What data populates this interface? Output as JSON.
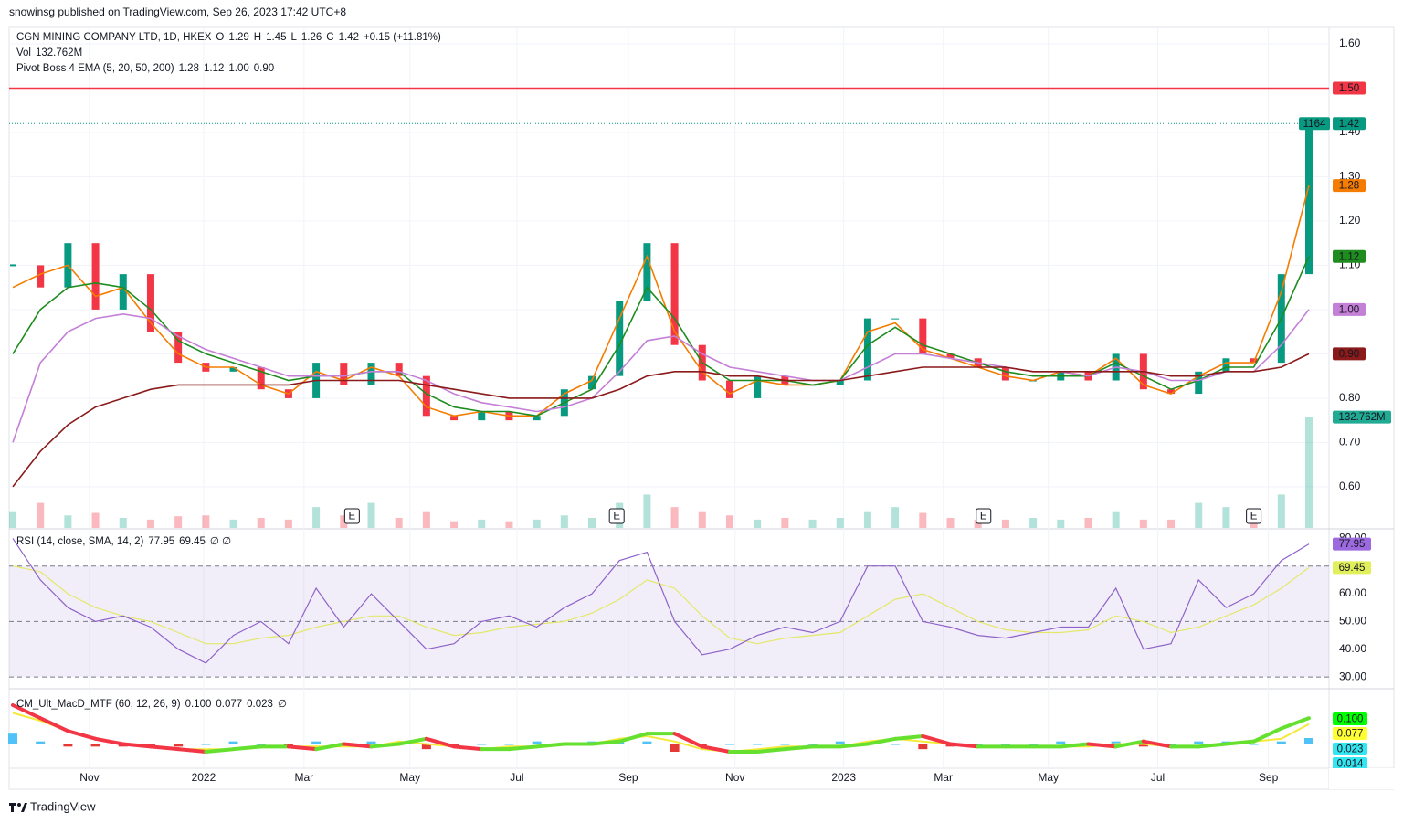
{
  "header": {
    "text": "snowinsg published on TradingView.com, Sep 26, 2023 17:42 UTC+8"
  },
  "footer": {
    "brand": "TradingView"
  },
  "chart_data": [
    {
      "type": "candlestick",
      "title": "CGN MINING COMPANY LTD, 1D, HKEX",
      "ohlc": [
        [
          "O",
          "1.29"
        ],
        [
          "H",
          "1.45"
        ],
        [
          "L",
          "1.26"
        ],
        [
          "C",
          "1.42"
        ]
      ],
      "change": "+0.15 (+11.81%)",
      "countdown": "1164",
      "up_color": "#089981",
      "down_color": "#f23645",
      "xlim": [
        0,
        47
      ],
      "xticks": [
        {
          "value": 2.78,
          "label": "Nov"
        },
        {
          "value": 6.92,
          "label": "2022"
        },
        {
          "value": 10.56,
          "label": "Mar"
        },
        {
          "value": 14.4,
          "label": "May"
        },
        {
          "value": 18.28,
          "label": "Jul"
        },
        {
          "value": 22.32,
          "label": "Sep"
        },
        {
          "value": 26.19,
          "label": "Nov"
        },
        {
          "value": 30.13,
          "label": "2023"
        },
        {
          "value": 33.74,
          "label": "Mar"
        },
        {
          "value": 37.55,
          "label": "May"
        },
        {
          "value": 41.52,
          "label": "Jul"
        },
        {
          "value": 45.53,
          "label": "Sep"
        }
      ],
      "ylim": [
        0.507,
        1.637
      ],
      "yticks": [
        {
          "value": 0.6,
          "label": "0.60"
        },
        {
          "value": 0.7,
          "label": "0.70"
        },
        {
          "value": 0.8,
          "label": "0.80"
        },
        {
          "value": 0.9,
          "label": "0.90"
        },
        {
          "value": 1.0,
          "label": "1.00"
        },
        {
          "value": 1.1,
          "label": "1.10"
        },
        {
          "value": 1.2,
          "label": "1.20"
        },
        {
          "value": 1.3,
          "label": "1.30"
        },
        {
          "value": 1.4,
          "label": "1.40"
        },
        {
          "value": 1.5,
          "label": "1.50"
        },
        {
          "value": 1.6,
          "label": "1.60"
        }
      ],
      "grid": true,
      "close": [
        1.1,
        1.05,
        1.15,
        1.0,
        1.08,
        0.95,
        0.88,
        0.86,
        0.87,
        0.82,
        0.8,
        0.88,
        0.83,
        0.88,
        0.85,
        0.76,
        0.75,
        0.77,
        0.75,
        0.76,
        0.82,
        0.85,
        1.02,
        1.15,
        0.92,
        0.84,
        0.8,
        0.85,
        0.83,
        0.83,
        0.84,
        0.98,
        0.98,
        0.9,
        0.89,
        0.87,
        0.84,
        0.84,
        0.86,
        0.84,
        0.9,
        0.82,
        0.81,
        0.86,
        0.89,
        0.88,
        1.08,
        1.42
      ],
      "hline": {
        "value": 1.5,
        "label": "1.50",
        "color": "#f23645"
      },
      "indicator": "Pivot Boss 4 EMA (5, 20, 50, 200)",
      "series": [
        {
          "color": "#f57c00",
          "label": "1.28",
          "values": [
            1.05,
            1.08,
            1.1,
            1.03,
            1.05,
            0.97,
            0.9,
            0.87,
            0.87,
            0.83,
            0.81,
            0.86,
            0.84,
            0.87,
            0.85,
            0.78,
            0.76,
            0.77,
            0.76,
            0.76,
            0.81,
            0.84,
            0.98,
            1.12,
            0.95,
            0.86,
            0.81,
            0.84,
            0.83,
            0.83,
            0.84,
            0.95,
            0.97,
            0.91,
            0.89,
            0.87,
            0.85,
            0.84,
            0.86,
            0.85,
            0.89,
            0.83,
            0.81,
            0.85,
            0.88,
            0.88,
            1.04,
            1.28
          ]
        },
        {
          "color": "#1e8c1e",
          "label": "1.12",
          "values": [
            0.9,
            1.0,
            1.05,
            1.06,
            1.05,
            1.0,
            0.93,
            0.9,
            0.88,
            0.86,
            0.84,
            0.85,
            0.85,
            0.86,
            0.86,
            0.81,
            0.78,
            0.77,
            0.77,
            0.76,
            0.79,
            0.82,
            0.92,
            1.05,
            0.98,
            0.88,
            0.84,
            0.84,
            0.84,
            0.83,
            0.84,
            0.92,
            0.96,
            0.92,
            0.9,
            0.88,
            0.86,
            0.85,
            0.85,
            0.85,
            0.88,
            0.85,
            0.82,
            0.84,
            0.87,
            0.87,
            0.98,
            1.12
          ]
        },
        {
          "color": "#c47fd6",
          "label": "1.00",
          "values": [
            0.7,
            0.88,
            0.95,
            0.98,
            0.99,
            0.98,
            0.94,
            0.91,
            0.89,
            0.87,
            0.85,
            0.85,
            0.85,
            0.86,
            0.86,
            0.84,
            0.81,
            0.79,
            0.78,
            0.77,
            0.78,
            0.8,
            0.86,
            0.93,
            0.94,
            0.9,
            0.87,
            0.86,
            0.85,
            0.84,
            0.84,
            0.87,
            0.9,
            0.9,
            0.89,
            0.88,
            0.87,
            0.86,
            0.86,
            0.85,
            0.87,
            0.86,
            0.84,
            0.84,
            0.86,
            0.86,
            0.92,
            1.0
          ]
        },
        {
          "color": "#8b1a1a",
          "label": "0.90",
          "values": [
            0.6,
            0.68,
            0.74,
            0.78,
            0.8,
            0.82,
            0.83,
            0.83,
            0.83,
            0.83,
            0.83,
            0.84,
            0.84,
            0.84,
            0.84,
            0.83,
            0.82,
            0.81,
            0.8,
            0.8,
            0.8,
            0.8,
            0.82,
            0.85,
            0.86,
            0.86,
            0.85,
            0.85,
            0.84,
            0.84,
            0.84,
            0.85,
            0.86,
            0.87,
            0.87,
            0.87,
            0.87,
            0.86,
            0.86,
            0.86,
            0.86,
            0.86,
            0.85,
            0.85,
            0.86,
            0.86,
            0.87,
            0.9
          ]
        }
      ],
      "volume": {
        "name": "Vol",
        "label": "132.762M",
        "ylim": [
          0,
          140
        ],
        "color": "#22ab94",
        "values": [
          20,
          30,
          15,
          18,
          12,
          10,
          14,
          15,
          10,
          12,
          10,
          25,
          15,
          30,
          12,
          20,
          8,
          10,
          8,
          10,
          15,
          12,
          30,
          40,
          25,
          20,
          15,
          10,
          12,
          10,
          12,
          20,
          25,
          18,
          12,
          10,
          10,
          12,
          10,
          12,
          20,
          10,
          10,
          30,
          25,
          15,
          40,
          132.762
        ]
      },
      "events": [
        {
          "x": 12.3,
          "label": "E"
        },
        {
          "x": 21.9,
          "label": "E"
        },
        {
          "x": 35.2,
          "label": "E"
        },
        {
          "x": 45.0,
          "label": "E"
        }
      ]
    },
    {
      "type": "line",
      "title": "RSI (14, close, SMA, 14, 2)",
      "flags": "∅ ∅",
      "ylim": [
        26.4,
        83.1
      ],
      "yticks": [
        {
          "value": 30,
          "label": "30.00"
        },
        {
          "value": 40,
          "label": "40.00"
        },
        {
          "value": 50,
          "label": "50.00"
        },
        {
          "value": 60,
          "label": "60.00"
        },
        {
          "value": 80,
          "label": "80.00"
        }
      ],
      "levels": [
        70,
        50,
        30
      ],
      "band_color": "#7e57c2",
      "series": [
        {
          "color": "#8e63c9",
          "label": "77.95",
          "badge_color": "#9c6ade",
          "values": [
            80,
            65,
            55,
            50,
            52,
            48,
            40,
            35,
            45,
            50,
            42,
            62,
            48,
            60,
            50,
            40,
            42,
            50,
            52,
            48,
            55,
            60,
            72,
            75,
            50,
            38,
            40,
            45,
            48,
            46,
            50,
            70,
            70,
            50,
            48,
            45,
            44,
            46,
            48,
            48,
            62,
            40,
            42,
            65,
            55,
            60,
            72,
            77.95
          ]
        },
        {
          "color": "#e3e86a",
          "label": "69.45",
          "badge_color": "#e1ef5a",
          "values": [
            70,
            68,
            60,
            55,
            52,
            50,
            46,
            42,
            42,
            44,
            45,
            48,
            50,
            52,
            52,
            48,
            45,
            46,
            48,
            49,
            50,
            53,
            58,
            65,
            62,
            52,
            44,
            42,
            44,
            45,
            46,
            52,
            58,
            60,
            55,
            50,
            47,
            46,
            46,
            47,
            52,
            50,
            46,
            48,
            52,
            56,
            62,
            69.45
          ]
        }
      ]
    },
    {
      "type": "macd",
      "title": "CM_Ult_MacD_MTF (60, 12, 26, 9)",
      "flags": "∅",
      "ylim": [
        -0.09,
        0.21
      ],
      "up_color": "#66e02e",
      "down_color": "#f23645",
      "series": [
        {
          "color": "#00e600",
          "label": "0.100",
          "badge_color": "#00ff00",
          "values": [
            0.15,
            0.1,
            0.05,
            0.02,
            0.0,
            -0.01,
            -0.02,
            -0.03,
            -0.02,
            -0.01,
            -0.01,
            -0.02,
            0.0,
            -0.01,
            0.0,
            0.02,
            -0.01,
            -0.02,
            -0.02,
            -0.01,
            0.0,
            0.0,
            0.01,
            0.04,
            0.04,
            -0.01,
            -0.03,
            -0.03,
            -0.02,
            -0.01,
            -0.01,
            0.0,
            0.02,
            0.03,
            0.0,
            -0.01,
            -0.01,
            -0.01,
            -0.01,
            0.0,
            -0.01,
            0.01,
            -0.01,
            -0.01,
            0.0,
            0.01,
            0.06,
            0.1
          ]
        },
        {
          "color": "#f5e93a",
          "label": "0.077",
          "badge_color": "#ffff33",
          "values": [
            0.12,
            0.09,
            0.05,
            0.02,
            0.0,
            -0.01,
            -0.02,
            -0.02,
            -0.02,
            -0.01,
            -0.01,
            -0.01,
            -0.01,
            -0.01,
            0.01,
            0.0,
            -0.01,
            -0.02,
            -0.01,
            -0.01,
            0.0,
            0.0,
            0.02,
            0.03,
            0.01,
            -0.02,
            -0.03,
            -0.02,
            -0.01,
            -0.01,
            -0.01,
            0.01,
            0.02,
            0.01,
            0.0,
            -0.01,
            -0.01,
            -0.01,
            -0.01,
            -0.01,
            0.0,
            0.0,
            -0.01,
            -0.01,
            0.0,
            0.01,
            0.02,
            0.077
          ]
        }
      ],
      "histogram": {
        "label": "0.023",
        "badge_color": "#33e6f0",
        "up_color": "#4fc3f7",
        "down_color": "#e53935",
        "values": [
          0.04,
          0.01,
          -0.01,
          -0.01,
          -0.01,
          -0.01,
          -0.01,
          0.0,
          0.01,
          0.0,
          -0.01,
          0.01,
          -0.01,
          0.01,
          0.01,
          -0.02,
          -0.01,
          0.0,
          0.0,
          0.01,
          0.0,
          0.01,
          0.01,
          0.01,
          -0.03,
          -0.01,
          0.0,
          0.0,
          0.0,
          0.0,
          0.01,
          0.01,
          0.0,
          -0.02,
          -0.01,
          0.0,
          0.0,
          0.0,
          0.01,
          -0.01,
          0.01,
          -0.01,
          0.0,
          0.01,
          0.01,
          0.0,
          0.01,
          0.023
        ]
      },
      "extra_label": "0.014"
    }
  ]
}
